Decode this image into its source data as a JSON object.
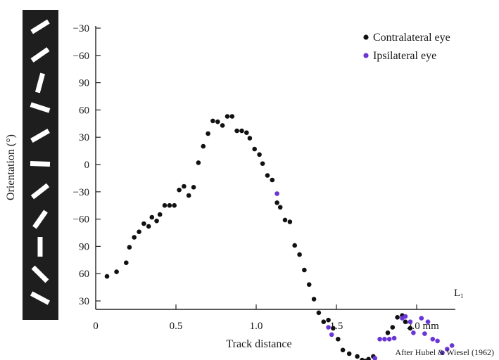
{
  "chart_data": {
    "type": "scatter",
    "xlabel": "Track distance",
    "ylabel": "Orientation (°)",
    "xlim": [
      0,
      2.25
    ],
    "x_ticks": [
      0,
      0.5,
      1.0,
      1.5,
      2.0
    ],
    "x_tick_labels": [
      "0",
      "0.5",
      "1.0",
      "1.5",
      "2.0 mm"
    ],
    "y_tick_labels": [
      "−30",
      "−60",
      "90",
      "60",
      "30",
      "0",
      "−30",
      "−60",
      "90",
      "60",
      "30"
    ],
    "y_scale": "continuous orientation (degrees, wrapping every 180°); tick labels as printed",
    "ylim": [
      -90,
      210
    ],
    "grid": false,
    "legend": {
      "position": "top-right",
      "entries": [
        {
          "label": "Contralateral eye",
          "color": "#111111"
        },
        {
          "label": "Ipsilateral eye",
          "color": "#6a33e0"
        }
      ]
    },
    "annotations": {
      "end_label": "L",
      "end_label_sub": "1",
      "credit": "After Hubel & Wiesel (1962)"
    },
    "series": [
      {
        "name": "Contralateral eye",
        "color": "#111111",
        "points": [
          [
            0.07,
            -63
          ],
          [
            0.13,
            -58
          ],
          [
            0.19,
            -48
          ],
          [
            0.21,
            -31
          ],
          [
            0.24,
            -20
          ],
          [
            0.27,
            -14
          ],
          [
            0.3,
            -5
          ],
          [
            0.33,
            -8
          ],
          [
            0.35,
            2
          ],
          [
            0.38,
            -2
          ],
          [
            0.4,
            5
          ],
          [
            0.43,
            15
          ],
          [
            0.46,
            15
          ],
          [
            0.49,
            15
          ],
          [
            0.52,
            32
          ],
          [
            0.55,
            36
          ],
          [
            0.58,
            26
          ],
          [
            0.61,
            35
          ],
          [
            0.64,
            62
          ],
          [
            0.67,
            80
          ],
          [
            0.7,
            94
          ],
          [
            0.73,
            108
          ],
          [
            0.76,
            107
          ],
          [
            0.79,
            103
          ],
          [
            0.82,
            113
          ],
          [
            0.85,
            113
          ],
          [
            0.88,
            97
          ],
          [
            0.91,
            97
          ],
          [
            0.94,
            95
          ],
          [
            0.96,
            89
          ],
          [
            0.99,
            77
          ],
          [
            1.02,
            71
          ],
          [
            1.04,
            61
          ],
          [
            1.07,
            48
          ],
          [
            1.1,
            43
          ],
          [
            1.13,
            18
          ],
          [
            1.15,
            13
          ],
          [
            1.18,
            -1
          ],
          [
            1.21,
            -3
          ],
          [
            1.24,
            -29
          ],
          [
            1.27,
            -39
          ],
          [
            1.3,
            -56
          ],
          [
            1.33,
            -72
          ],
          [
            1.36,
            -88
          ],
          [
            1.39,
            -103
          ],
          [
            1.42,
            -113
          ],
          [
            1.45,
            -111
          ],
          [
            1.48,
            -120
          ],
          [
            1.51,
            -132
          ],
          [
            1.54,
            -144
          ],
          [
            1.58,
            -148
          ],
          [
            1.63,
            -151
          ],
          [
            1.66,
            -155
          ],
          [
            1.68,
            -156
          ],
          [
            1.7,
            -154
          ],
          [
            1.73,
            -151
          ],
          [
            1.82,
            -125
          ],
          [
            1.85,
            -119
          ],
          [
            1.88,
            -108
          ],
          [
            1.91,
            -106
          ],
          [
            1.93,
            -113
          ],
          [
            1.96,
            -120
          ]
        ]
      },
      {
        "name": "Ipsilateral eye",
        "color": "#6a33e0",
        "points": [
          [
            1.13,
            28
          ],
          [
            1.45,
            -119
          ],
          [
            1.47,
            -127
          ],
          [
            1.74,
            -153
          ],
          [
            1.77,
            -132
          ],
          [
            1.8,
            -132
          ],
          [
            1.83,
            -132
          ],
          [
            1.86,
            -131
          ],
          [
            1.91,
            -109
          ],
          [
            1.93,
            -107
          ],
          [
            1.96,
            -113
          ],
          [
            1.98,
            -125
          ],
          [
            2.03,
            -109
          ],
          [
            2.05,
            -126
          ],
          [
            2.07,
            -113
          ],
          [
            2.1,
            -132
          ],
          [
            2.13,
            -134
          ],
          [
            2.16,
            -147
          ],
          [
            2.19,
            -143
          ],
          [
            2.22,
            -139
          ]
        ]
      }
    ]
  }
}
